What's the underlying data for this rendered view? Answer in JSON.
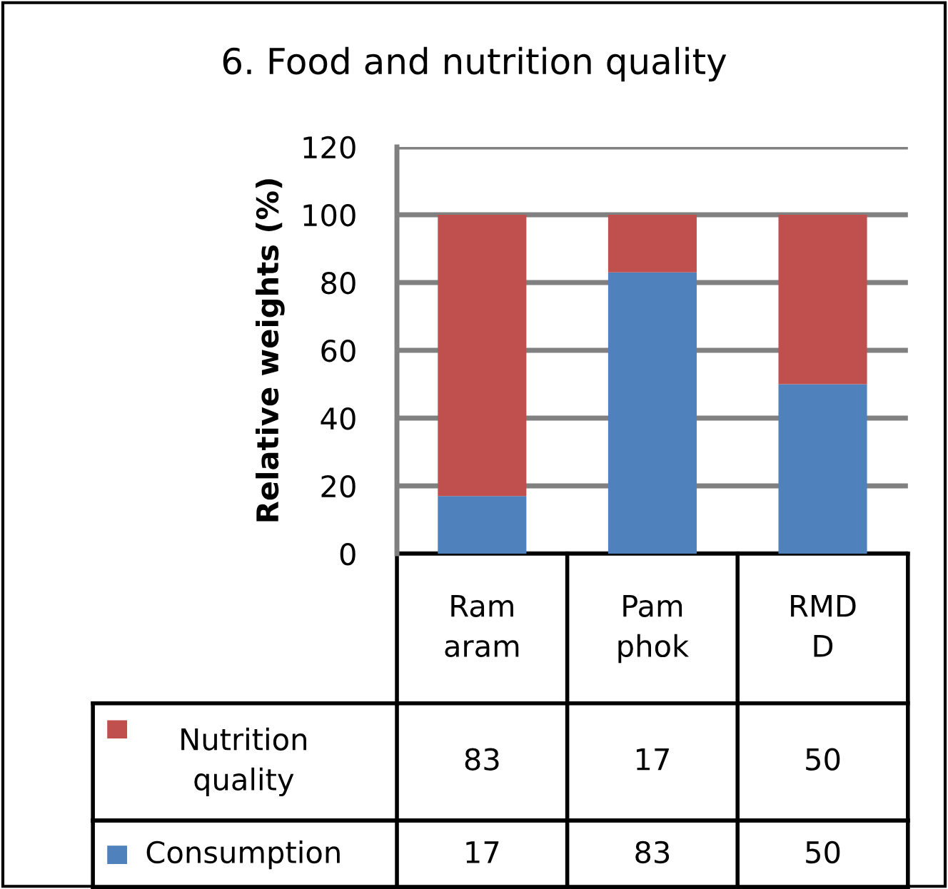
{
  "chart_data": {
    "type": "bar",
    "title": "6. Food and nutrition quality",
    "ylabel": "Relative weights (%)",
    "categories": [
      "Ram\naram",
      "Pam\nphok",
      "RMD\nD"
    ],
    "stacked": true,
    "series": [
      {
        "name": "Consumption",
        "color": "#4f81bd",
        "values": [
          17,
          83,
          50
        ]
      },
      {
        "name": "Nutrition\nquality",
        "color": "#c0504d",
        "values": [
          83,
          17,
          50
        ]
      }
    ],
    "ylim": [
      0,
      120
    ],
    "yticks": [
      0,
      20,
      40,
      60,
      80,
      100,
      120
    ],
    "grid": "y",
    "legend": "bottom",
    "data_labels": true
  }
}
